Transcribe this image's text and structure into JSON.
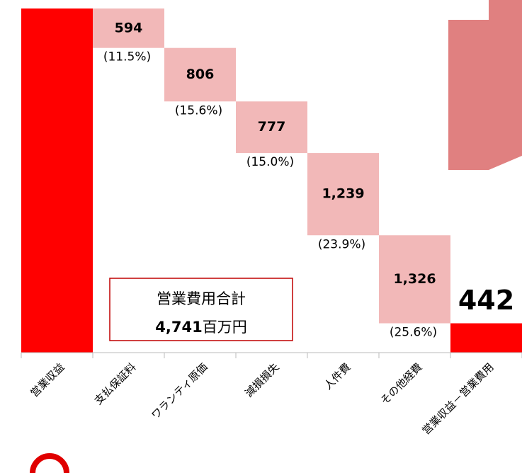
{
  "chart_data": {
    "type": "waterfall",
    "categories": [
      "営業収益",
      "支払保証料",
      "ワランティ原価",
      "減損損失",
      "人件費",
      "その他経費",
      "営業収益－営業費用"
    ],
    "values": [
      5184,
      594,
      806,
      777,
      1239,
      1326,
      442
    ],
    "value_labels": [
      null,
      "594",
      "806",
      "777",
      "1,239",
      "1,326",
      "442"
    ],
    "share_labels": [
      null,
      "(11.5%)",
      "(15.6%)",
      "(15.0%)",
      "(23.9%)",
      "(25.6%)",
      null
    ],
    "total_color": "#ff0000",
    "step_color": "#f2b8b8",
    "ylim": [
      0,
      5184
    ],
    "annotation": {
      "title": "営業費用合計",
      "total": "4,741",
      "unit": "百万円"
    }
  }
}
